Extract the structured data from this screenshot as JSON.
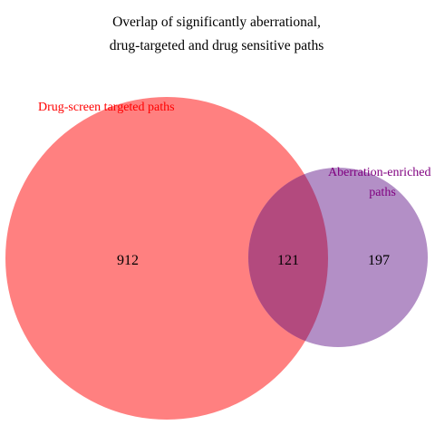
{
  "title": {
    "line1": "Overlap of significantly aberrational,",
    "line2": "drug-targeted and drug sensitive paths"
  },
  "sets": {
    "left": {
      "label": "Drug-screen targeted paths",
      "color": "#ff0000",
      "fill": "#ff8080"
    },
    "right": {
      "label_line1": "Aberration-enriched",
      "label_line2": "paths",
      "color": "#800080",
      "fill": "#b38fc6"
    }
  },
  "counts": {
    "left_only": "912",
    "both": "121",
    "right_only": "197"
  },
  "overlap_color": "#b34a7e"
}
